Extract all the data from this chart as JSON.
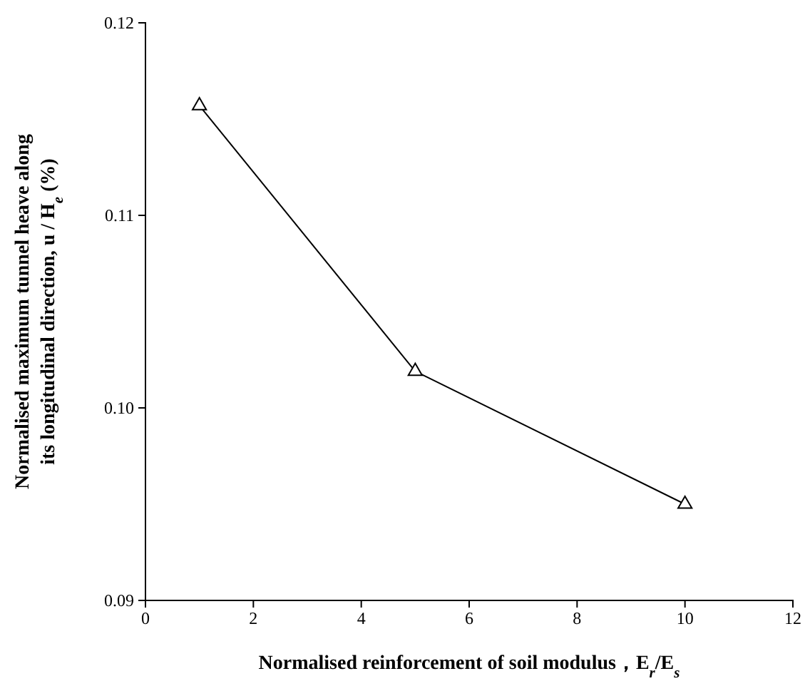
{
  "chart_data": {
    "type": "line",
    "xlabel": "Normalised reinforcement of soil modulus，E$_{r}$/E$_{s}$",
    "ylabel": "Normalised maximum tunnel heave along its longitudinal direction, u / H$_{e}$ (%)",
    "x": [
      1,
      5,
      10
    ],
    "series": [
      {
        "color": "#000000",
        "values": [
          0.1157,
          0.1019,
          0.095
        ]
      }
    ],
    "xlim": [
      0,
      12
    ],
    "xticks": [
      0,
      2,
      4,
      6,
      8,
      10,
      12
    ],
    "ylim": [
      0.09,
      0.12
    ],
    "yticks": [
      {
        "value": 0.09,
        "label": "0.09"
      },
      {
        "value": 0.1,
        "label": "0.10"
      },
      {
        "value": 0.11,
        "label": "0.11"
      },
      {
        "value": 0.12,
        "label": "0.12"
      }
    ],
    "grid": false,
    "marker": "triangle",
    "line_style": "solid"
  }
}
